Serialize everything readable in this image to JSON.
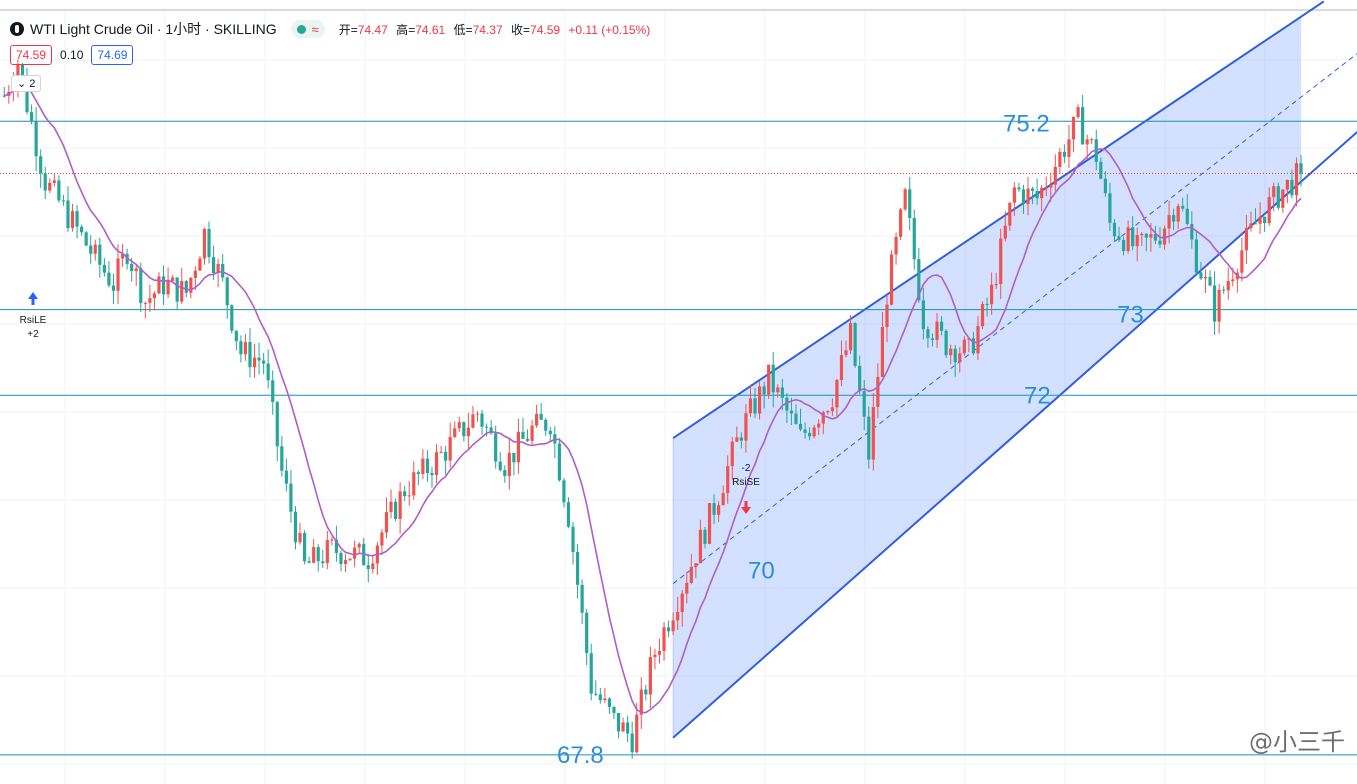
{
  "header": {
    "title": "WTI Light Crude Oil · 1小时 · SKILLING",
    "status_icon": "≈",
    "ohlc": {
      "open_label": "开",
      "open": "74.47",
      "high_label": "高",
      "high": "74.61",
      "low_label": "低",
      "low": "74.37",
      "close_label": "收",
      "close": "74.59",
      "change": "+0.11 (+0.15%)"
    }
  },
  "prices": {
    "sell": "74.59",
    "spread": "0.10",
    "buy": "74.69"
  },
  "indicators_toggle": "2",
  "watermark": "@小三千",
  "colors": {
    "up": "#ef5350",
    "down": "#26a69a",
    "ma": "#b05ec8",
    "channel_fill": "#2962ff",
    "channel_line": "#2f5ee0",
    "hline": "#1a8fb8",
    "price_line": "#f23645",
    "label": "#2a8fd8"
  },
  "chart_data": {
    "type": "candlestick",
    "title": "WTI Light Crude Oil · 1小时 · SKILLING",
    "ylim": [
      67.6,
      76.5
    ],
    "horizontal_levels": [
      {
        "value": 75.2,
        "label": "75.2"
      },
      {
        "value": 73.0,
        "label": "73"
      },
      {
        "value": 72.0,
        "label": "72"
      },
      {
        "value": 67.8,
        "label": "67.8"
      }
    ],
    "current_price": 74.59,
    "annotations": [
      {
        "text": "70",
        "value": 70.0
      },
      {
        "text": "RsiLE",
        "sub": "+2",
        "type": "long-entry"
      },
      {
        "text": "RsiSE",
        "sub": "-2",
        "type": "short-entry"
      }
    ],
    "price_path": [
      [
        0,
        75.5
      ],
      [
        3,
        75.9
      ],
      [
        5,
        75.4
      ],
      [
        9,
        74.5
      ],
      [
        14,
        74.1
      ],
      [
        20,
        73.6
      ],
      [
        24,
        73.3
      ],
      [
        27,
        73.7
      ],
      [
        31,
        73.1
      ],
      [
        35,
        73.3
      ],
      [
        40,
        73.2
      ],
      [
        44,
        73.9
      ],
      [
        48,
        73.3
      ],
      [
        52,
        72.5
      ],
      [
        57,
        72.4
      ],
      [
        61,
        71.1
      ],
      [
        66,
        70.0
      ],
      [
        72,
        70.2
      ],
      [
        80,
        70.1
      ],
      [
        88,
        70.9
      ],
      [
        96,
        71.3
      ],
      [
        104,
        71.8
      ],
      [
        110,
        71.2
      ],
      [
        116,
        71.6
      ],
      [
        120,
        71.7
      ],
      [
        124,
        70.6
      ],
      [
        129,
        68.6
      ],
      [
        134,
        68.2
      ],
      [
        138,
        68.0
      ],
      [
        143,
        69.0
      ],
      [
        150,
        69.9
      ],
      [
        156,
        70.7
      ],
      [
        162,
        71.6
      ],
      [
        168,
        72.2
      ],
      [
        175,
        71.5
      ],
      [
        182,
        72.0
      ],
      [
        186,
        72.7
      ],
      [
        190,
        71.3
      ],
      [
        194,
        73.2
      ],
      [
        198,
        74.3
      ],
      [
        202,
        72.9
      ],
      [
        207,
        72.6
      ],
      [
        212,
        72.5
      ],
      [
        217,
        73.2
      ],
      [
        222,
        74.4
      ],
      [
        227,
        74.3
      ],
      [
        232,
        74.8
      ],
      [
        236,
        75.2
      ],
      [
        240,
        74.8
      ],
      [
        243,
        74.0
      ],
      [
        249,
        73.7
      ],
      [
        254,
        73.9
      ],
      [
        258,
        74.3
      ],
      [
        262,
        73.6
      ],
      [
        266,
        73.0
      ],
      [
        271,
        73.6
      ],
      [
        276,
        74.1
      ],
      [
        281,
        74.4
      ],
      [
        285,
        74.59
      ]
    ],
    "channel": {
      "upper": [
        {
          "bar": 147,
          "value": 71.5
        },
        {
          "bar": 290,
          "value": 76.6
        }
      ],
      "lower": [
        {
          "bar": 147,
          "value": 68.0
        },
        {
          "bar": 300,
          "value": 75.2
        }
      ],
      "mid": [
        {
          "bar": 147,
          "value": 69.8
        },
        {
          "bar": 300,
          "value": 76.1
        }
      ]
    },
    "ma_period": 12
  }
}
